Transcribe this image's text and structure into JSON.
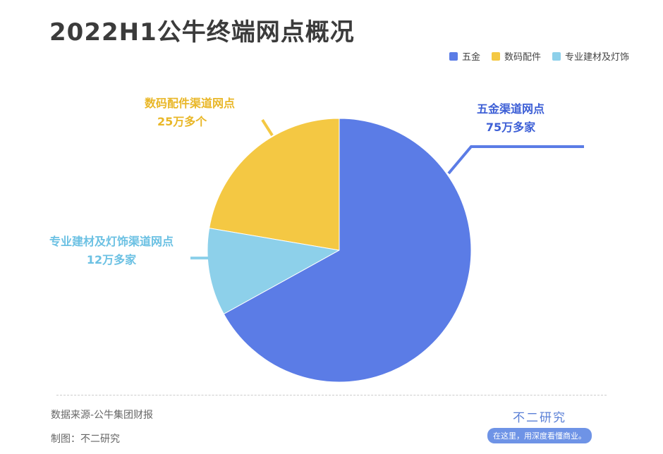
{
  "title": "2022H1公牛终端网点概况",
  "chart_data": {
    "type": "pie",
    "title": "2022H1公牛终端网点概况",
    "legend_position": "top-right",
    "slices": [
      {
        "name": "五金",
        "value": 75,
        "label": "五金渠道网点",
        "value_label": "75万多家",
        "color": "#5b7ce6",
        "text_color": "#3d5fd6"
      },
      {
        "name": "专业建材及灯饰",
        "value": 12,
        "label": "专业建材及灯饰渠道网点",
        "value_label": "12万多家",
        "color": "#8dd0ea",
        "text_color": "#6cc1e3"
      },
      {
        "name": "数码配件",
        "value": 25,
        "label": "数码配件渠道网点",
        "value_label": "25万多个",
        "color": "#f4c843",
        "text_color": "#e9b728"
      }
    ],
    "legend": [
      "五金",
      "数码配件",
      "专业建材及灯饰"
    ],
    "unit": "万家"
  },
  "footer": {
    "source": "数据来源-公牛集团财报",
    "made_by": "制图：不二研究",
    "brand": "不二研究",
    "slogan": "在这里，用深度看懂商业。"
  }
}
